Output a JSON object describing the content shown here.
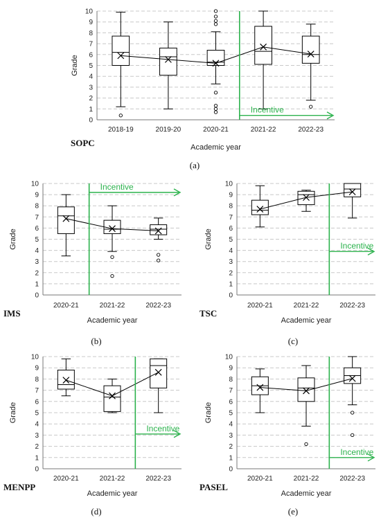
{
  "chart_data": [
    {
      "type": "box",
      "panel_name": "SOPC",
      "caption": "(a)",
      "xlabel": "Academic year",
      "ylabel": "Grade",
      "ylim": [
        0,
        10
      ],
      "yticks": [
        "0",
        "1",
        "2",
        "3",
        "4",
        "5",
        "6",
        "7",
        "8",
        "9",
        "10"
      ],
      "categories": [
        "2018-19",
        "2019-20",
        "2020-21",
        "2021-22",
        "2022-23"
      ],
      "boxes": [
        {
          "min": 1.2,
          "q1": 5.0,
          "median": 6.2,
          "q3": 7.7,
          "max": 9.9,
          "mean": 5.9,
          "outliers": [
            0.4
          ]
        },
        {
          "min": 1.0,
          "q1": 4.1,
          "median": 5.8,
          "q3": 6.6,
          "max": 9.0,
          "mean": 5.55,
          "outliers": []
        },
        {
          "min": 3.3,
          "q1": 5.0,
          "median": 5.3,
          "q3": 6.4,
          "max": 8.1,
          "mean": 5.2,
          "outliers": [
            0.7,
            1.0,
            1.3,
            2.5,
            8.8,
            9.1,
            9.5,
            10.0
          ]
        },
        {
          "min": 1.0,
          "q1": 5.1,
          "median": 6.3,
          "q3": 8.6,
          "max": 10.0,
          "mean": 6.7,
          "outliers": []
        },
        {
          "min": 1.8,
          "q1": 5.2,
          "median": 6.0,
          "q3": 7.7,
          "max": 8.8,
          "mean": 6.05,
          "outliers": [
            1.2
          ]
        }
      ],
      "incentive": {
        "label": "Incentive",
        "start_after_index": 2,
        "arrow_y": 0.4
      }
    },
    {
      "type": "box",
      "panel_name": "IMS",
      "caption": "(b)",
      "xlabel": "Academic year",
      "ylabel": "Grade",
      "ylim": [
        0,
        10
      ],
      "yticks": [
        "0",
        "1",
        "2",
        "3",
        "4",
        "5",
        "6",
        "7",
        "8",
        "9",
        "10"
      ],
      "categories": [
        "2020-21",
        "2021-22",
        "2022-23"
      ],
      "boxes": [
        {
          "min": 3.5,
          "q1": 5.5,
          "median": 7.1,
          "q3": 7.9,
          "max": 9.0,
          "mean": 6.85,
          "outliers": []
        },
        {
          "min": 3.9,
          "q1": 5.5,
          "median": 5.9,
          "q3": 6.7,
          "max": 8.0,
          "mean": 5.95,
          "outliers": [
            1.7,
            3.4
          ]
        },
        {
          "min": 5.0,
          "q1": 5.4,
          "median": 5.9,
          "q3": 6.3,
          "max": 6.9,
          "mean": 5.75,
          "outliers": [
            3.1,
            3.6
          ]
        }
      ],
      "incentive": {
        "label": "Incentive",
        "start_after_index": 0,
        "arrow_y": 9.2
      }
    },
    {
      "type": "box",
      "panel_name": "TSC",
      "caption": "(c)",
      "xlabel": "Academic year",
      "ylabel": "Grade",
      "ylim": [
        0,
        10
      ],
      "yticks": [
        "0",
        "1",
        "2",
        "3",
        "4",
        "5",
        "6",
        "7",
        "8",
        "9",
        "10"
      ],
      "categories": [
        "2020-21",
        "2021-22",
        "2022-23"
      ],
      "boxes": [
        {
          "min": 6.1,
          "q1": 7.2,
          "median": 7.6,
          "q3": 8.5,
          "max": 9.8,
          "mean": 7.7,
          "outliers": []
        },
        {
          "min": 7.5,
          "q1": 8.1,
          "median": 9.0,
          "q3": 9.3,
          "max": 9.4,
          "mean": 8.75,
          "outliers": []
        },
        {
          "min": 6.9,
          "q1": 8.8,
          "median": 9.5,
          "q3": 10.0,
          "max": 10.0,
          "mean": 9.25,
          "outliers": []
        }
      ],
      "incentive": {
        "label": "Incentive",
        "start_after_index": 1,
        "arrow_y": 3.9
      }
    },
    {
      "type": "box",
      "panel_name": "MENPP",
      "caption": "(d)",
      "xlabel": "Academic year",
      "ylabel": "Grade",
      "ylim": [
        0,
        10
      ],
      "yticks": [
        "0",
        "1",
        "2",
        "3",
        "4",
        "5",
        "6",
        "7",
        "8",
        "9",
        "10"
      ],
      "categories": [
        "2020-21",
        "2021-22",
        "2022-23"
      ],
      "boxes": [
        {
          "min": 6.5,
          "q1": 7.1,
          "median": 7.5,
          "q3": 8.8,
          "max": 9.8,
          "mean": 7.9,
          "outliers": []
        },
        {
          "min": 5.0,
          "q1": 5.1,
          "median": 6.4,
          "q3": 7.4,
          "max": 8.0,
          "mean": 6.5,
          "outliers": []
        },
        {
          "min": 5.0,
          "q1": 7.2,
          "median": 9.2,
          "q3": 9.8,
          "max": 9.8,
          "mean": 8.6,
          "outliers": []
        }
      ],
      "incentive": {
        "label": "Incentive",
        "start_after_index": 1,
        "arrow_y": 3.1
      }
    },
    {
      "type": "box",
      "panel_name": "PASEL",
      "caption": "(e)",
      "xlabel": "Academic year",
      "ylabel": "Grade",
      "ylim": [
        0,
        10
      ],
      "yticks": [
        "0",
        "1",
        "2",
        "3",
        "4",
        "5",
        "6",
        "7",
        "8",
        "9",
        "10"
      ],
      "categories": [
        "2020-21",
        "2021-22",
        "2022-23"
      ],
      "boxes": [
        {
          "min": 5.0,
          "q1": 6.6,
          "median": 7.4,
          "q3": 8.2,
          "max": 8.9,
          "mean": 7.25,
          "outliers": []
        },
        {
          "min": 3.8,
          "q1": 6.0,
          "median": 7.2,
          "q3": 8.1,
          "max": 9.2,
          "mean": 6.95,
          "outliers": [
            2.2
          ]
        },
        {
          "min": 5.7,
          "q1": 7.6,
          "median": 8.3,
          "q3": 9.0,
          "max": 10.0,
          "mean": 8.05,
          "outliers": [
            3.0,
            5.0
          ]
        }
      ],
      "incentive": {
        "label": "Incentive",
        "start_after_index": 1,
        "arrow_y": 1.0
      }
    }
  ]
}
